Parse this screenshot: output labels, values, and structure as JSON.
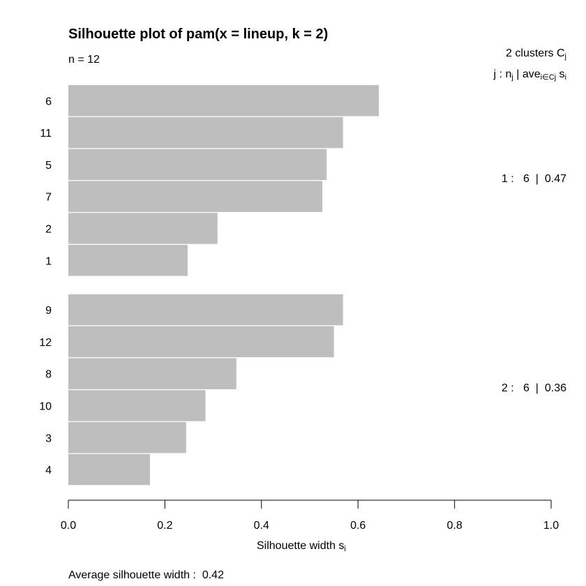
{
  "colors": {
    "bar": "#bebebe",
    "axis": "#000000",
    "background": "#ffffff"
  },
  "title": "Silhouette plot of pam(x = lineup, k = 2)",
  "n_text": "n = 12",
  "legend": {
    "clusters_count": "2",
    "clusters_word": "clusters",
    "cluster_symbol": "C",
    "cluster_symbol_sub": "j",
    "key_j": "j :",
    "key_n": "n",
    "key_n_sub": "j",
    "key_sep": "|",
    "key_ave": "ave",
    "key_ave_sub": "i∈Cj",
    "key_s": "s",
    "key_s_sub": "i"
  },
  "cluster_labels": [
    "1 :   6  |  0.47",
    "2 :   6  |  0.36"
  ],
  "xlabel_main": "Silhouette width s",
  "xlabel_sub": "i",
  "average_text": "Average silhouette width :  0.42",
  "chart_data": {
    "type": "bar",
    "orientation": "horizontal",
    "title": "Silhouette plot of pam(x = lineup, k = 2)",
    "xlabel": "Silhouette width s_i",
    "xlim": [
      0,
      1
    ],
    "xticks": [
      "0.0",
      "0.2",
      "0.4",
      "0.6",
      "0.8",
      "1.0"
    ],
    "grid": false,
    "clusters": [
      {
        "cluster": 1,
        "n": 6,
        "average": 0.47,
        "labels": [
          "6",
          "11",
          "5",
          "7",
          "2",
          "1"
        ],
        "values": [
          0.643,
          0.569,
          0.535,
          0.526,
          0.309,
          0.247
        ]
      },
      {
        "cluster": 2,
        "n": 6,
        "average": 0.36,
        "labels": [
          "9",
          "12",
          "8",
          "10",
          "3",
          "4"
        ],
        "values": [
          0.569,
          0.55,
          0.348,
          0.284,
          0.244,
          0.169
        ]
      }
    ],
    "average_silhouette_width": 0.42
  }
}
